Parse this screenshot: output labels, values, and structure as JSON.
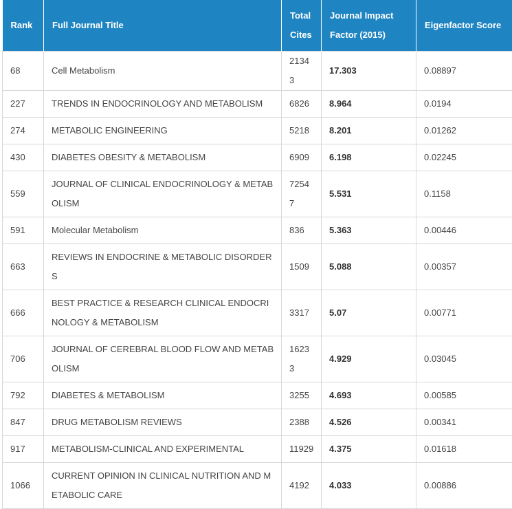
{
  "header": {
    "rank": "Rank",
    "title": "Full Journal Title",
    "cites": "Total Cites",
    "jif": "Journal Impact Factor (2015)",
    "eigen": "Eigenfactor Score"
  },
  "rows": [
    {
      "rank": "68",
      "title": "Cell Metabolism",
      "cites": "21343",
      "jif": "17.303",
      "eigen": "0.08897"
    },
    {
      "rank": "227",
      "title": "TRENDS IN ENDOCRINOLOGY AND  METABOLISM",
      "cites": "6826",
      "jif": "8.964",
      "eigen": "0.0194"
    },
    {
      "rank": "274",
      "title": "METABOLIC ENGINEERING",
      "cites": "5218",
      "jif": "8.201",
      "eigen": "0.01262"
    },
    {
      "rank": "430",
      "title": "DIABETES OBESITY &  METABOLISM",
      "cites": "6909",
      "jif": "6.198",
      "eigen": "0.02245"
    },
    {
      "rank": "559",
      "title": "JOURNAL OF CLINICAL  ENDOCRINOLOGY & METABOLISM",
      "cites": "72547",
      "jif": "5.531",
      "eigen": "0.1158"
    },
    {
      "rank": "591",
      "title": "Molecular Metabolism",
      "cites": "836",
      "jif": "5.363",
      "eigen": "0.00446"
    },
    {
      "rank": "663",
      "title": "REVIEWS IN ENDOCRINE &  METABOLIC DISORDERS",
      "cites": "1509",
      "jif": "5.088",
      "eigen": "0.00357"
    },
    {
      "rank": "666",
      "title": "BEST PRACTICE & RESEARCH  CLINICAL ENDOCRINOLOGY & METABOLISM",
      "cites": "3317",
      "jif": "5.07",
      "eigen": "0.00771"
    },
    {
      "rank": "706",
      "title": "JOURNAL OF CEREBRAL BLOOD FLOW  AND METABOLISM",
      "cites": "16233",
      "jif": "4.929",
      "eigen": "0.03045"
    },
    {
      "rank": "792",
      "title": "DIABETES & METABOLISM",
      "cites": "3255",
      "jif": "4.693",
      "eigen": "0.00585"
    },
    {
      "rank": "847",
      "title": "DRUG METABOLISM REVIEWS",
      "cites": "2388",
      "jif": "4.526",
      "eigen": "0.00341"
    },
    {
      "rank": "917",
      "title": "METABOLISM-CLINICAL AND  EXPERIMENTAL",
      "cites": "11929",
      "jif": "4.375",
      "eigen": "0.01618"
    },
    {
      "rank": "1066",
      "title": "CURRENT OPINION IN CLINICAL  NUTRITION AND METABOLIC CARE",
      "cites": "4192",
      "jif": "4.033",
      "eigen": "0.00886"
    }
  ]
}
